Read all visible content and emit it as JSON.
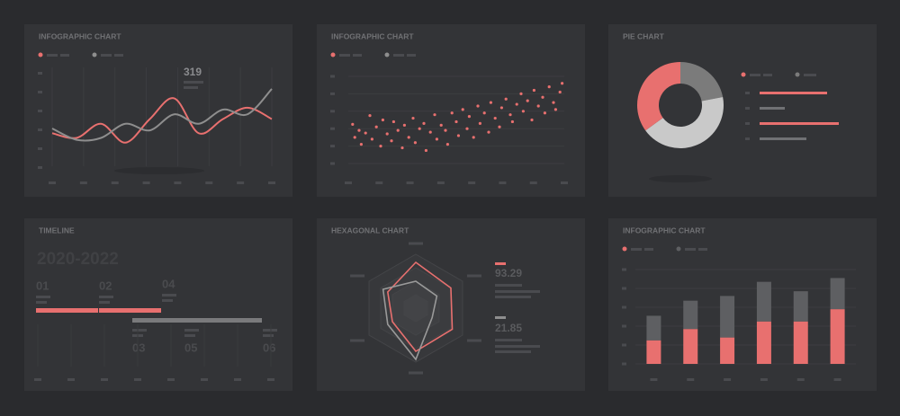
{
  "chart_data": [
    {
      "type": "line",
      "title": "INFOGRAPHIC CHART",
      "annotation": "319",
      "x": [
        0,
        1,
        2,
        3,
        4,
        5,
        6,
        7,
        8,
        9
      ],
      "xlim": [
        0,
        9
      ],
      "ylim": [
        0,
        100
      ],
      "series": [
        {
          "color": "#e8706f",
          "values": [
            35,
            30,
            45,
            25,
            50,
            72,
            35,
            50,
            62,
            50
          ]
        },
        {
          "color": "#8e8e8e",
          "values": [
            40,
            28,
            30,
            45,
            38,
            55,
            45,
            60,
            55,
            82
          ]
        }
      ]
    },
    {
      "type": "scatter",
      "title": "INFOGRAPHIC CHART",
      "color": "#e8706f",
      "xlim": [
        0,
        100
      ],
      "ylim": [
        0,
        100
      ],
      "x": [
        2,
        3,
        5,
        6,
        8,
        10,
        11,
        13,
        15,
        16,
        18,
        20,
        21,
        23,
        25,
        26,
        28,
        30,
        31,
        33,
        35,
        36,
        38,
        40,
        41,
        43,
        45,
        46,
        48,
        50,
        51,
        53,
        55,
        56,
        58,
        60,
        61,
        63,
        65,
        66,
        68,
        70,
        71,
        73,
        75,
        76,
        78,
        80,
        81,
        83,
        85,
        86,
        88,
        90,
        91,
        93,
        95,
        96,
        98,
        99
      ],
      "values": [
        45,
        30,
        38,
        22,
        35,
        55,
        28,
        42,
        20,
        50,
        34,
        26,
        48,
        38,
        18,
        44,
        30,
        52,
        24,
        40,
        46,
        15,
        36,
        56,
        28,
        44,
        38,
        22,
        58,
        48,
        32,
        62,
        40,
        54,
        30,
        66,
        46,
        58,
        36,
        70,
        52,
        42,
        64,
        74,
        56,
        48,
        68,
        80,
        60,
        72,
        50,
        84,
        66,
        76,
        58,
        88,
        70,
        62,
        82,
        92
      ]
    },
    {
      "type": "pie",
      "title": "PIE CHART",
      "values": [
        22,
        43,
        35
      ],
      "colors": [
        "#7b7b7b",
        "#c9c9c9",
        "#e8706f"
      ]
    },
    {
      "type": "radar",
      "title": "HEXAGONAL CHART",
      "annotations": [
        "93.29",
        "21.85"
      ],
      "rlim": [
        0,
        100
      ],
      "series": [
        {
          "color": "#e8706f",
          "values": [
            85,
            75,
            78,
            80,
            50,
            60
          ]
        },
        {
          "color": "#9a9a9a",
          "values": [
            50,
            45,
            35,
            95,
            60,
            70
          ]
        }
      ]
    },
    {
      "type": "bar",
      "title": "INFOGRAPHIC CHART",
      "stacked": true,
      "categories": [
        null,
        null,
        null,
        null,
        null,
        null
      ],
      "ylim": [
        0,
        100
      ],
      "series": [
        {
          "color": "#e8706f",
          "values": [
            25,
            37,
            28,
            45,
            45,
            58
          ]
        },
        {
          "color": "#5e5f62",
          "values": [
            26,
            30,
            44,
            42,
            32,
            33
          ]
        }
      ]
    }
  ],
  "timeline": {
    "title": "TIMELINE",
    "period": "2020-2022",
    "steps": [
      "01",
      "02",
      "04",
      "03",
      "05",
      "06"
    ]
  }
}
